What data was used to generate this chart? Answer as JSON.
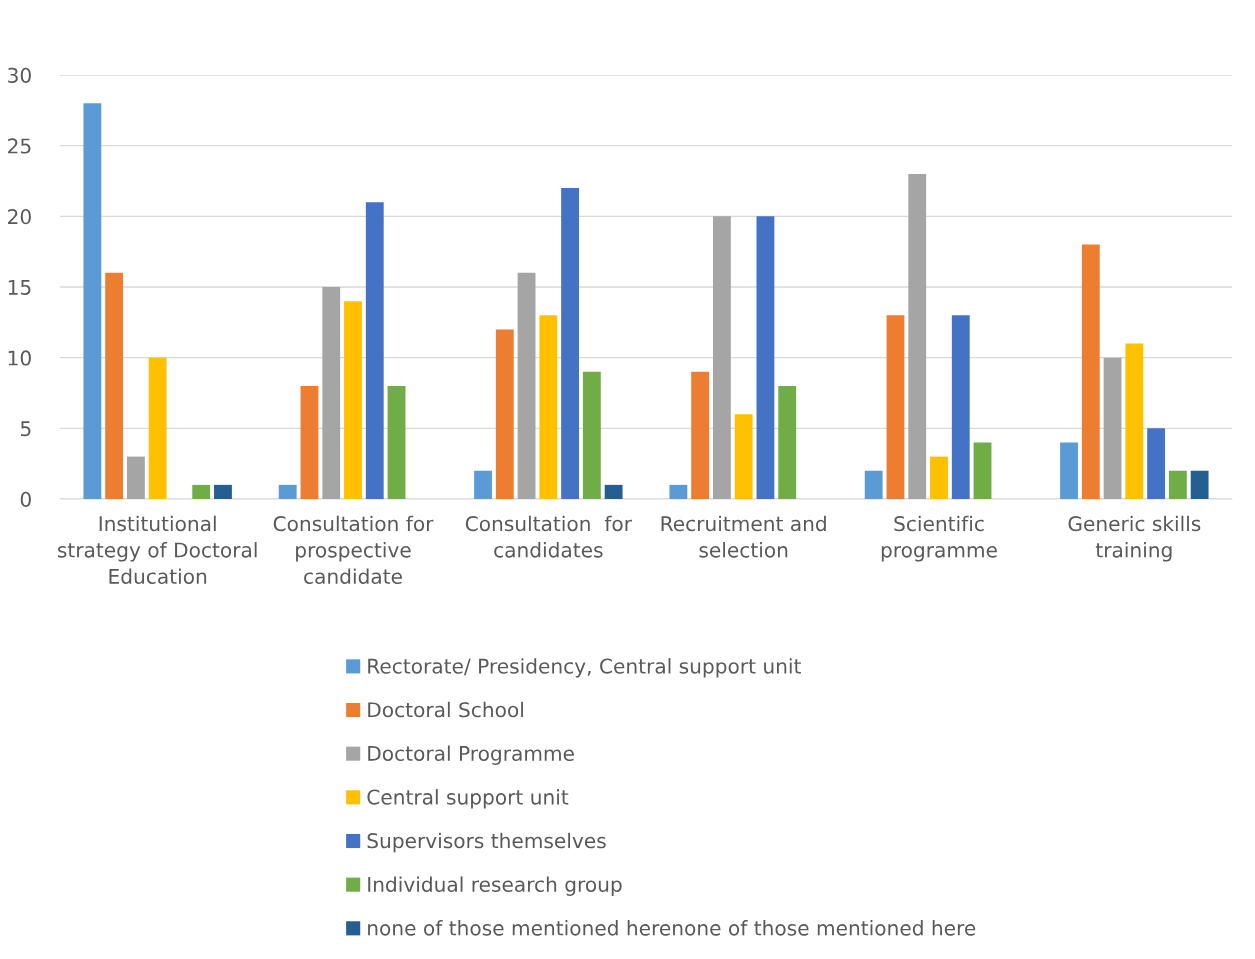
{
  "chart_data": {
    "type": "bar",
    "categories": [
      "Institutional\nstrategy of Doctoral\nEducation",
      "Consultation for\nprospective\ncandidate",
      "Consultation  for\ncandidates",
      "Recruitment and\nselection",
      "Scientific\nprogramme",
      "Generic skills\ntraining"
    ],
    "series": [
      {
        "name": "Rectorate/ Presidency, Central support unit",
        "color": "#5b9bd5",
        "values": [
          28,
          1,
          2,
          1,
          2,
          4
        ]
      },
      {
        "name": "Doctoral School",
        "color": "#ed7d31",
        "values": [
          16,
          8,
          12,
          9,
          13,
          18
        ]
      },
      {
        "name": "Doctoral Programme",
        "color": "#a5a5a5",
        "values": [
          3,
          15,
          16,
          20,
          23,
          10
        ]
      },
      {
        "name": "Central support unit",
        "color": "#ffc000",
        "values": [
          10,
          14,
          13,
          6,
          3,
          11
        ]
      },
      {
        "name": "Supervisors themselves",
        "color": "#4472c4",
        "values": [
          null,
          21,
          22,
          20,
          13,
          5
        ]
      },
      {
        "name": "Individual research group",
        "color": "#70ad47",
        "values": [
          1,
          8,
          9,
          8,
          4,
          2
        ]
      },
      {
        "name": "none of those mentioned herenone of those mentioned here",
        "color": "#255e91",
        "values": [
          1,
          null,
          1,
          null,
          null,
          2
        ]
      }
    ],
    "ylim": [
      0,
      30
    ],
    "yticks": [
      0,
      5,
      10,
      15,
      20,
      25,
      30
    ],
    "grid": "y",
    "legend": "bottom"
  }
}
